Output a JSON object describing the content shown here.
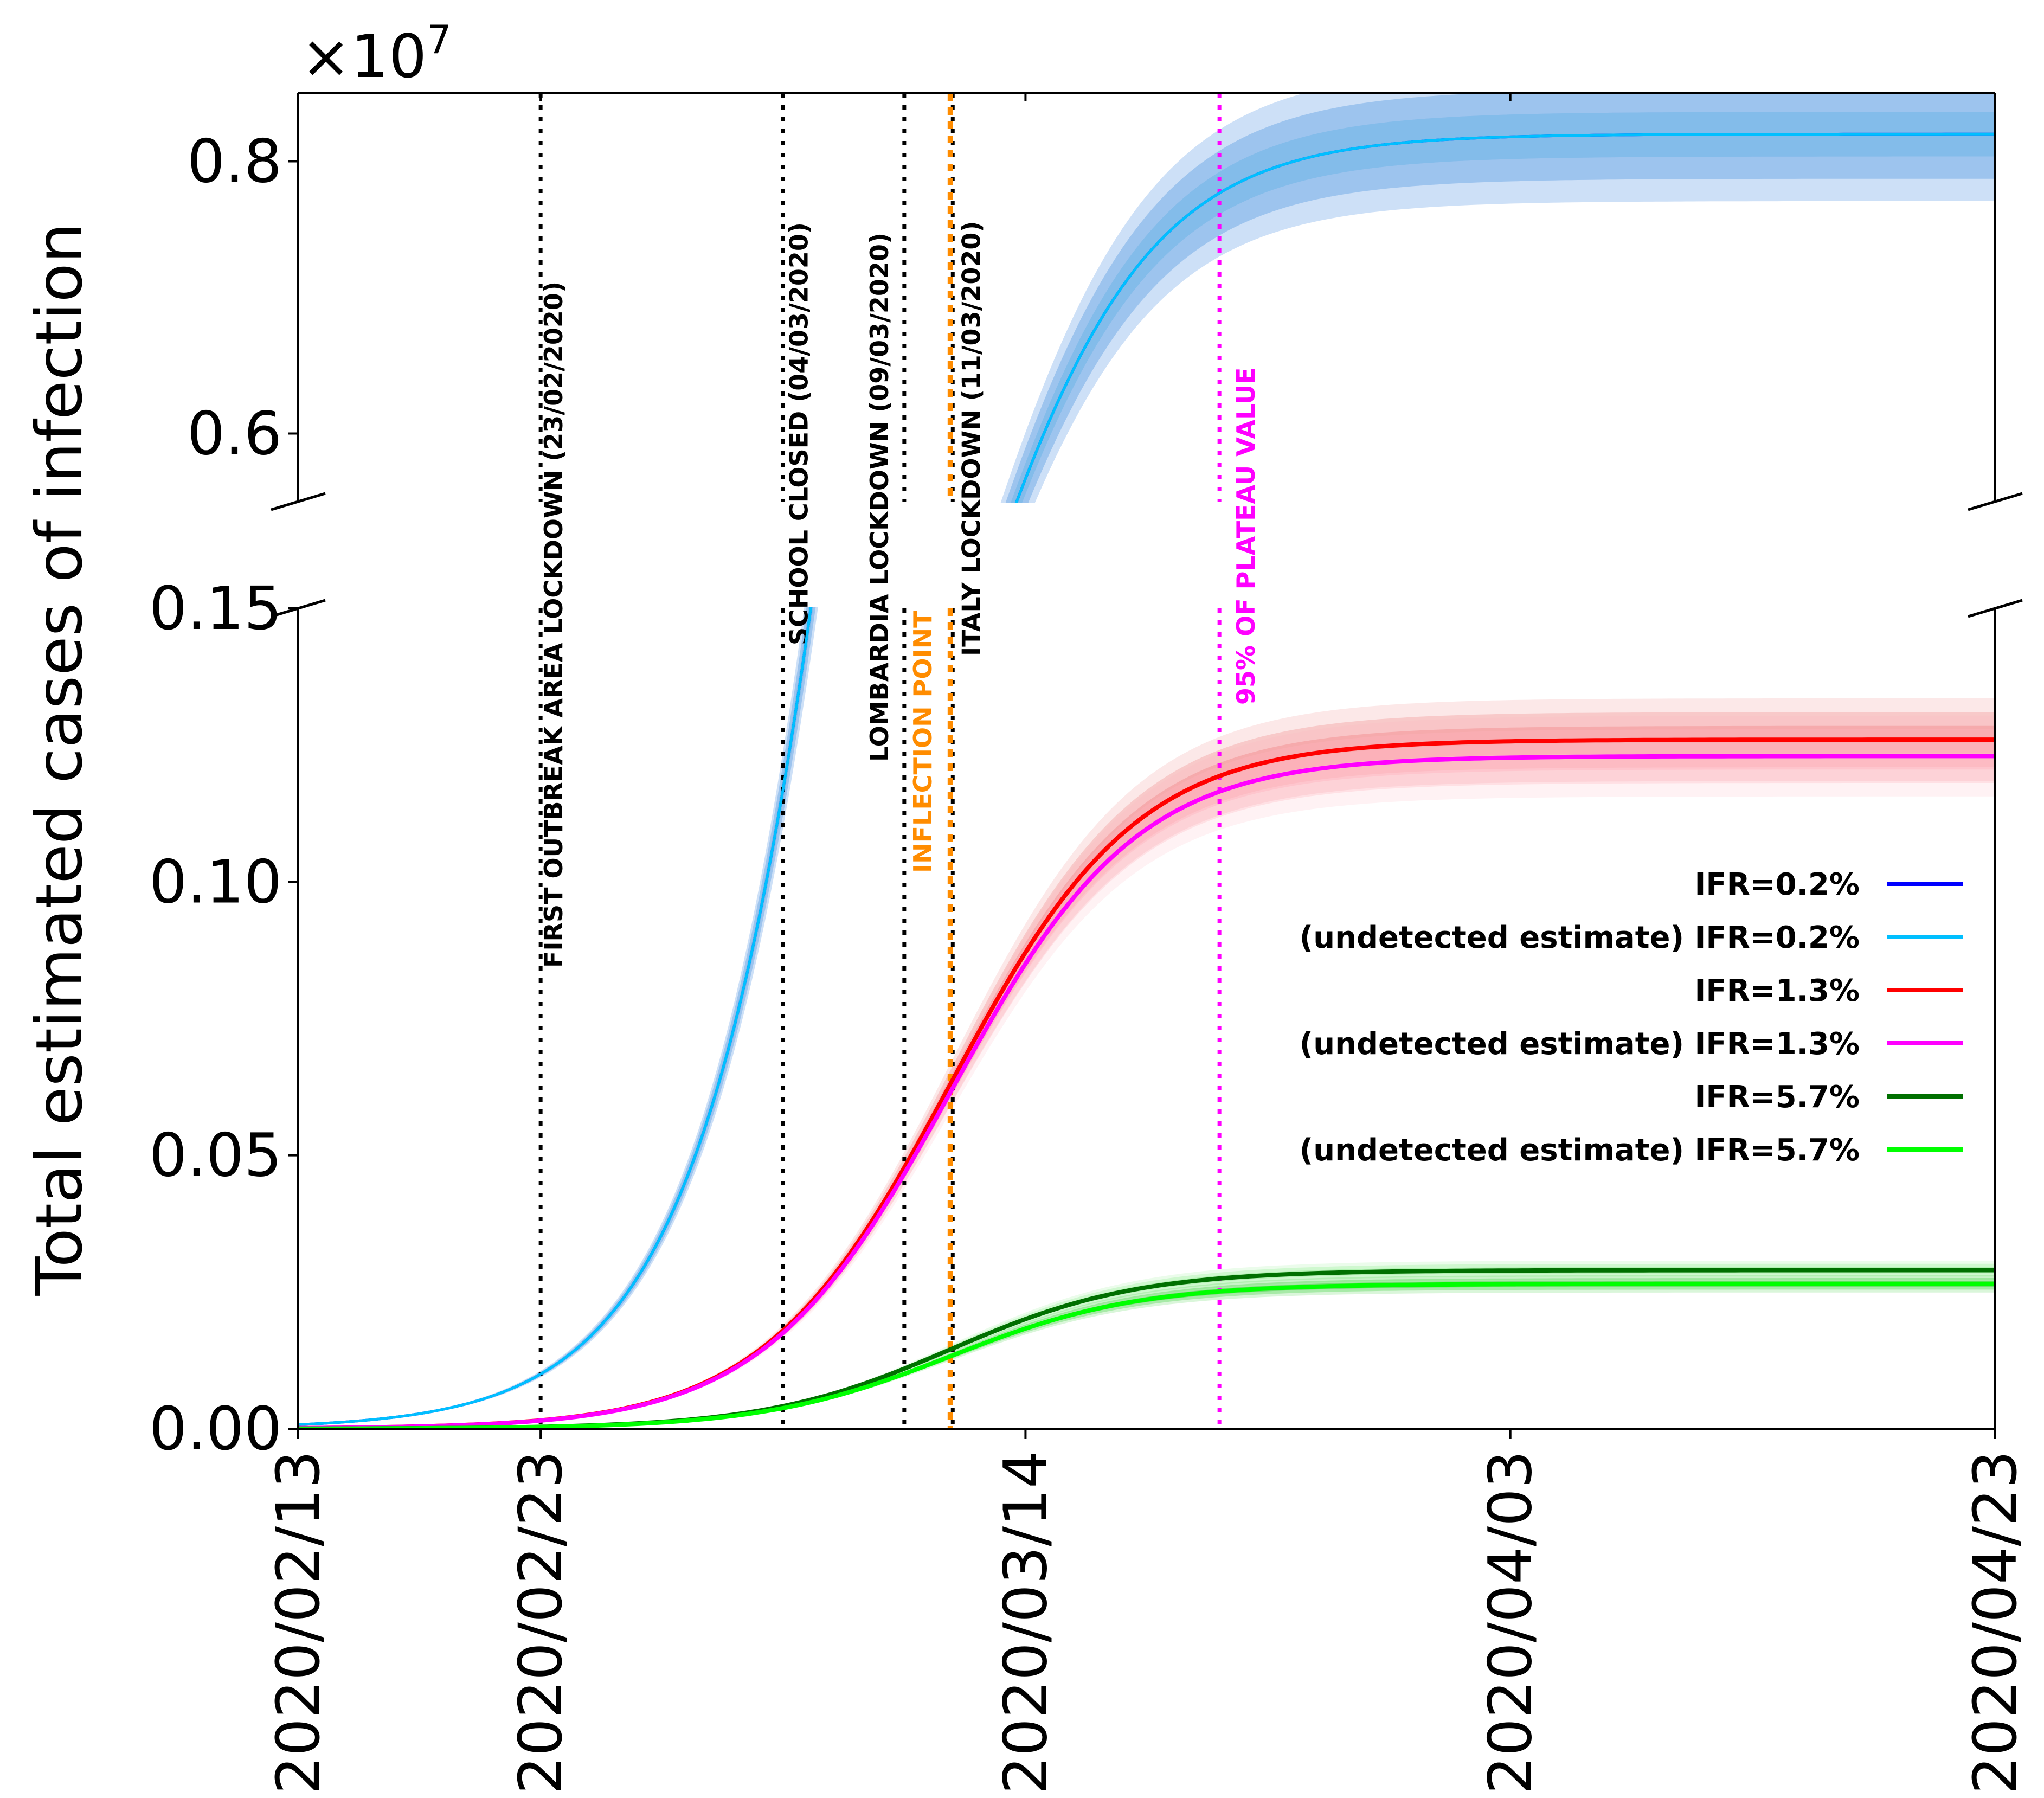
{
  "chart_data": {
    "type": "line",
    "title": "",
    "ylabel": "Total estimated cases of infection",
    "xlabel": "",
    "y_multiplier": {
      "base": "×10",
      "exponent": "7"
    },
    "broken_y_axis": true,
    "upper_panel": {
      "ylim": [
        0.55,
        0.85
      ],
      "ticks": [
        0.6,
        0.8
      ],
      "tick_labels": [
        "0.6",
        "0.8"
      ]
    },
    "lower_panel": {
      "ylim": [
        0.0,
        0.15
      ],
      "ticks": [
        0.0,
        0.05,
        0.1,
        0.15
      ],
      "tick_labels": [
        "0.00",
        "0.05",
        "0.10",
        "0.15"
      ]
    },
    "x_ticks": [
      {
        "day": 0,
        "label": "2020/02/13"
      },
      {
        "day": 10,
        "label": "2020/02/23"
      },
      {
        "day": 30,
        "label": "2020/03/14"
      },
      {
        "day": 50,
        "label": "2020/04/03"
      },
      {
        "day": 70,
        "label": "2020/04/23"
      }
    ],
    "x_range_days": [
      0,
      70
    ],
    "events": [
      {
        "day": 10,
        "label": "FIRST OUTBREAK AREA LOCKDOWN (23/02/2020)",
        "color": "#000000"
      },
      {
        "day": 20,
        "label": "SCHOOL CLOSED (04/03/2020)",
        "color": "#000000"
      },
      {
        "day": 25,
        "label": "LOMBARDIA LOCKDOWN (09/03/2020)",
        "color": "#000000"
      },
      {
        "day": 27,
        "label": "ITALY LOCKDOWN (11/03/2020)",
        "color": "#000000"
      },
      {
        "day": 26.9,
        "label": "INFLECTION POINT",
        "color": "#ff8c00"
      },
      {
        "day": 38,
        "label": "95% OF PLATEAU VALUE",
        "color": "#ff00ff"
      }
    ],
    "series": [
      {
        "name": "IFR=0.2%",
        "color": "#0000ff",
        "band": "#4169e1",
        "plateau": 0.82,
        "midpoint": 26.9,
        "rate": 0.26
      },
      {
        "name": "(undetected estimate) IFR=0.2%",
        "color": "#00bfff",
        "band": "#87ceeb",
        "plateau": 0.82,
        "midpoint": 26.9,
        "rate": 0.26
      },
      {
        "name": "IFR=1.3%",
        "color": "#ff0000",
        "band": "#f08080",
        "plateau": 0.126,
        "midpoint": 26.9,
        "rate": 0.26
      },
      {
        "name": "(undetected estimate) IFR=1.3%",
        "color": "#ff00ff",
        "band": "#ffb6c1",
        "plateau": 0.123,
        "midpoint": 26.9,
        "rate": 0.26
      },
      {
        "name": "IFR=5.7%",
        "color": "#007000",
        "band": "#90ee90",
        "plateau": 0.029,
        "midpoint": 26.9,
        "rate": 0.26
      },
      {
        "name": "(undetected estimate) IFR=5.7%",
        "color": "#00ff00",
        "band": "#32cd32",
        "plateau": 0.0265,
        "midpoint": 26.9,
        "rate": 0.26
      }
    ],
    "legend_position": "center-right"
  }
}
